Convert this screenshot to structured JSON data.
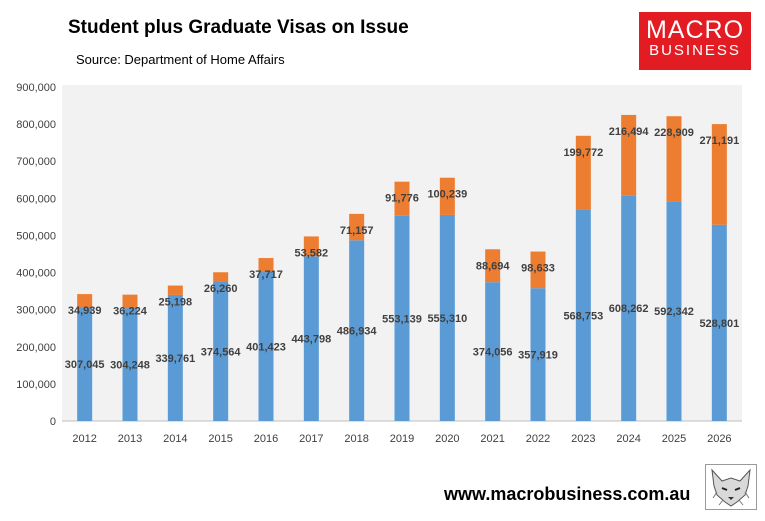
{
  "header": {
    "title": "Student plus Graduate Visas on Issue",
    "source": "Source: Department of Home Affairs"
  },
  "logo": {
    "line1": "MACRO",
    "line2": "BUSINESS"
  },
  "footer": {
    "website": "www.macrobusiness.com.au"
  },
  "colors": {
    "student": "#5b9bd5",
    "graduate": "#ed7d31",
    "plot_background": "#f2f2f2",
    "brand_red": "#e31b23"
  },
  "chart_data": {
    "type": "bar",
    "stacked": true,
    "categories": [
      "2012",
      "2013",
      "2014",
      "2015",
      "2016",
      "2017",
      "2018",
      "2019",
      "2020",
      "2021",
      "2022",
      "2023",
      "2024",
      "2025",
      "2026"
    ],
    "series": [
      {
        "values": [
          307045,
          304248,
          339761,
          374564,
          401423,
          443798,
          486934,
          553139,
          555310,
          374056,
          357919,
          568753,
          608262,
          592342,
          528801
        ],
        "labels": [
          "307,045",
          "304,248",
          "339,761",
          "374,564",
          "401,423",
          "443,798",
          "486,934",
          "553,139",
          "555,310",
          "374,056",
          "357,919",
          "568,753",
          "608,262",
          "592,342",
          "528,801"
        ]
      },
      {
        "values": [
          34939,
          36224,
          25198,
          26260,
          37717,
          53582,
          71157,
          91776,
          100239,
          88694,
          98633,
          199772,
          216494,
          228909,
          271191
        ],
        "labels": [
          "34,939",
          "36,224",
          "25,198",
          "26,260",
          "37,717",
          "53,582",
          "71,157",
          "91,776",
          "100,239",
          "88,694",
          "98,633",
          "199,772",
          "216,494",
          "228,909",
          "271,191"
        ]
      }
    ],
    "yticks": [
      "0",
      "100,000",
      "200,000",
      "300,000",
      "400,000",
      "500,000",
      "600,000",
      "700,000",
      "800,000",
      "900,000"
    ],
    "ylim": [
      0,
      900000
    ],
    "grid": false,
    "legend": "none",
    "title": "Student plus Graduate Visas on Issue",
    "xlabel": "",
    "ylabel": ""
  }
}
